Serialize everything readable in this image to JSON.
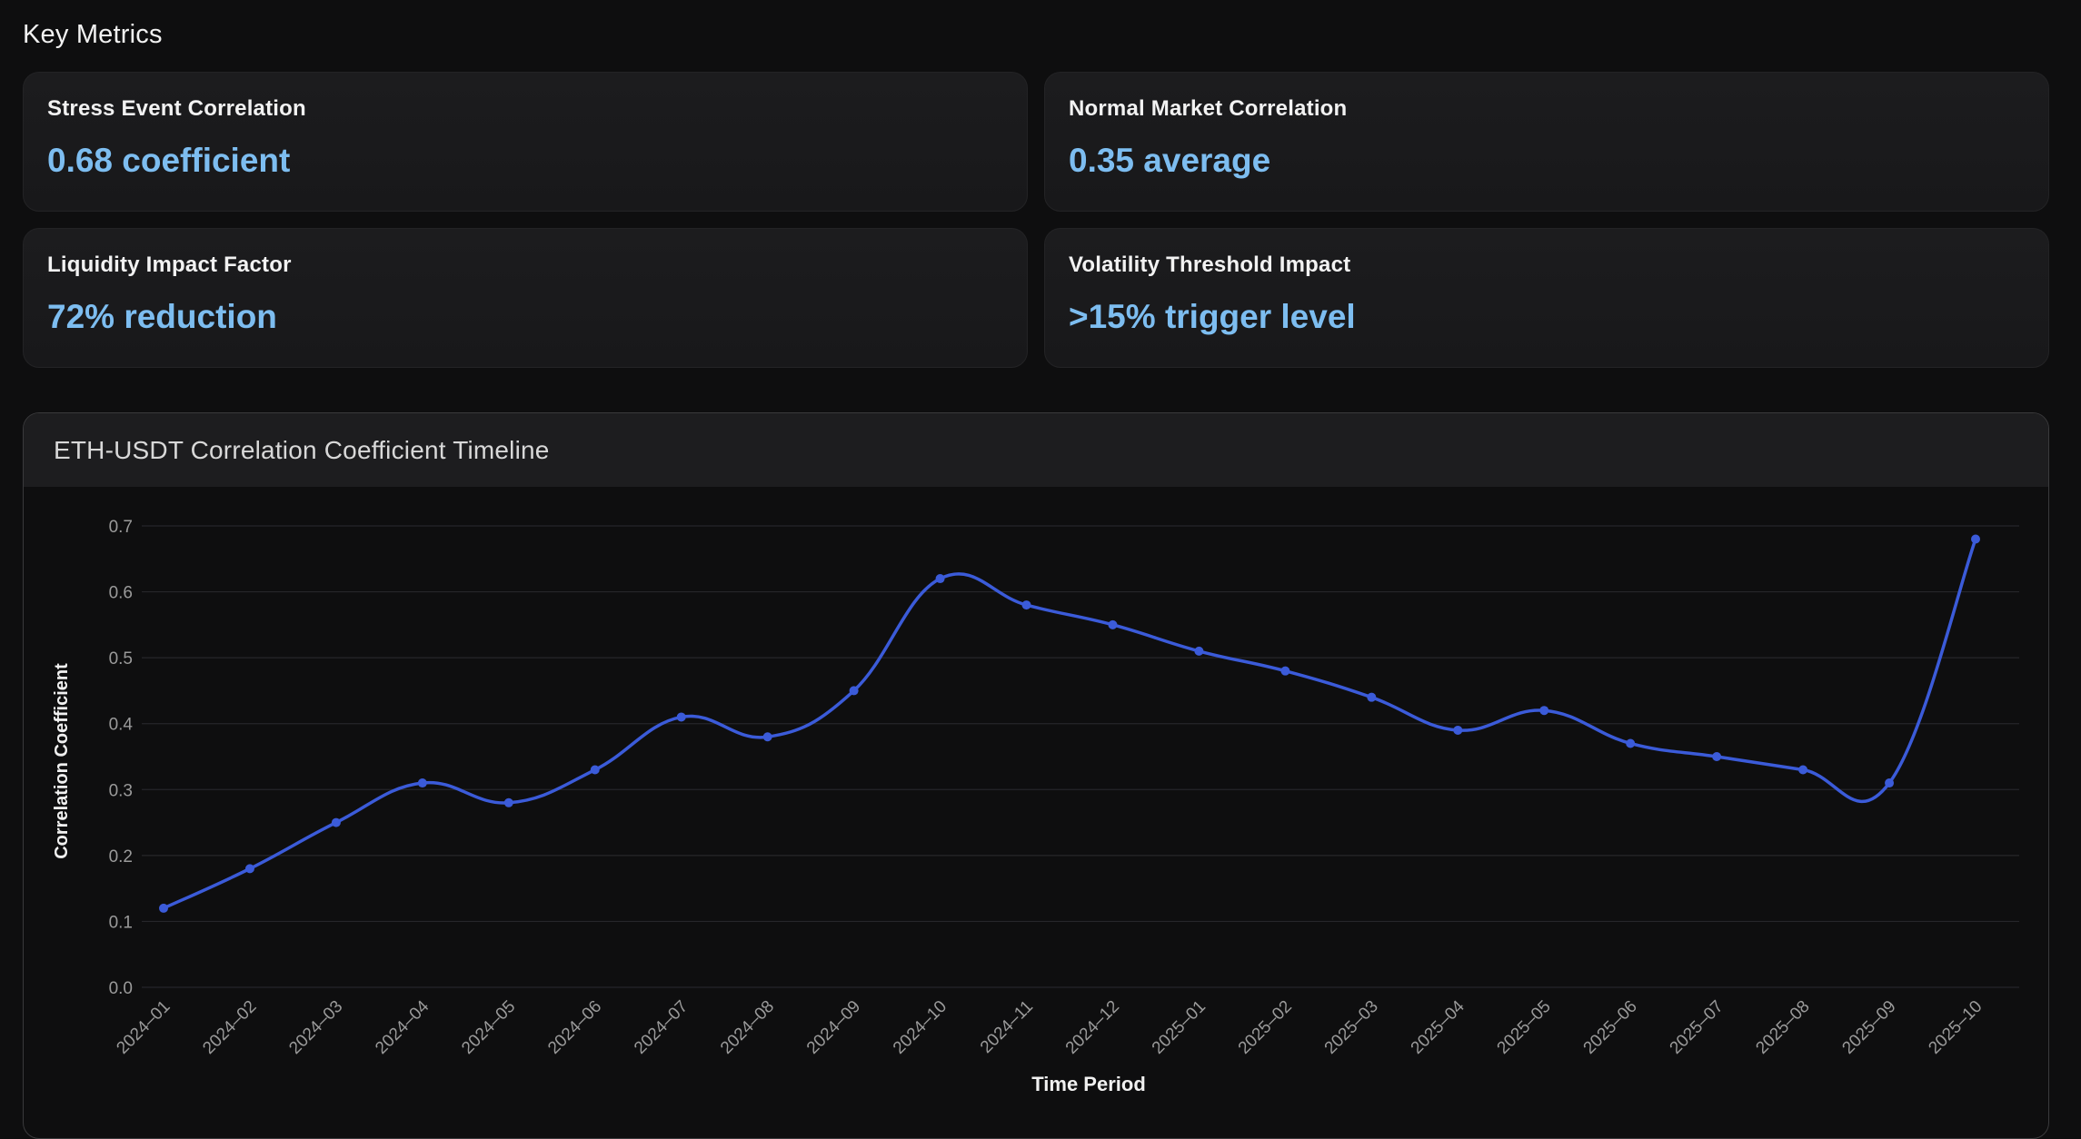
{
  "metrics_section": {
    "title": "Key Metrics"
  },
  "metrics": [
    {
      "label": "Stress Event Correlation",
      "value": "0.68 coefficient"
    },
    {
      "label": "Normal Market Correlation",
      "value": "0.35 average"
    },
    {
      "label": "Liquidity Impact Factor",
      "value": "72% reduction"
    },
    {
      "label": "Volatility Threshold Impact",
      "value": ">15% trigger level"
    }
  ],
  "colors": {
    "background": "#0e0e0f",
    "card": "#1c1c1e",
    "metric_value": "#7dbdf0",
    "line": "#3b5bd9",
    "grid": "#26262a",
    "tick_text": "#9a9a9a"
  },
  "chart_data": {
    "type": "line",
    "title": "ETH-USDT Correlation Coefficient Timeline",
    "xlabel": "Time Period",
    "ylabel": "Correlation Coefficient",
    "ylim": [
      0,
      0.7
    ],
    "yticks": [
      "0.0",
      "0.1",
      "0.2",
      "0.3",
      "0.4",
      "0.5",
      "0.6",
      "0.7"
    ],
    "grid": true,
    "x": [
      "2024–01",
      "2024–02",
      "2024–03",
      "2024–04",
      "2024–05",
      "2024–06",
      "2024–07",
      "2024–08",
      "2024–09",
      "2024–10",
      "2024–11",
      "2024–12",
      "2025–01",
      "2025–02",
      "2025–03",
      "2025–04",
      "2025–05",
      "2025–06",
      "2025–07",
      "2025–08",
      "2025–09",
      "2025–10"
    ],
    "series": [
      {
        "values": [
          0.12,
          0.18,
          0.25,
          0.31,
          0.28,
          0.33,
          0.41,
          0.38,
          0.45,
          0.62,
          0.58,
          0.55,
          0.51,
          0.48,
          0.44,
          0.39,
          0.42,
          0.37,
          0.35,
          0.33,
          0.31,
          0.68
        ]
      }
    ]
  }
}
